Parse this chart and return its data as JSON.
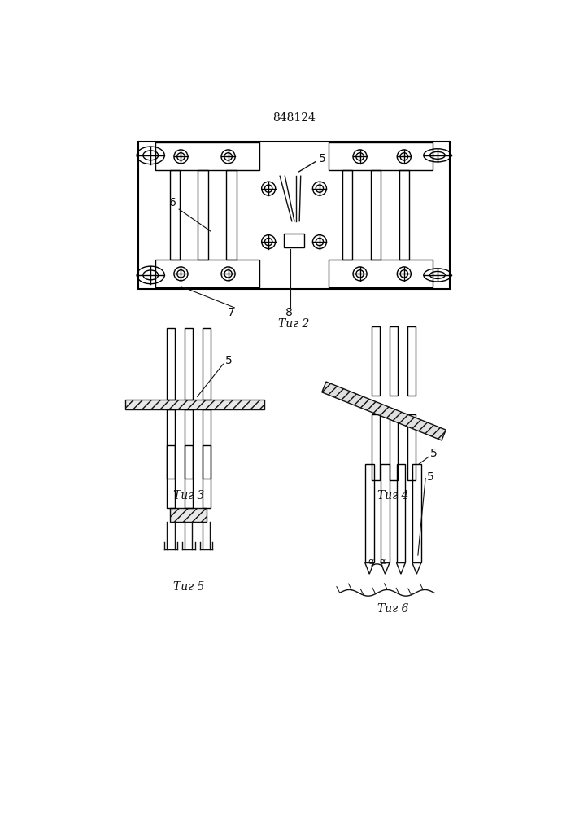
{
  "title": "848124",
  "fig2_label": "Τиг 2",
  "fig3_label": "Τиг 3",
  "fig4_label": "Τиг 4",
  "fig5_label": "Τиг 5",
  "fig6_label": "Τиг 6",
  "bg_color": "#ffffff",
  "line_color": "#111111",
  "lw": 1.0
}
